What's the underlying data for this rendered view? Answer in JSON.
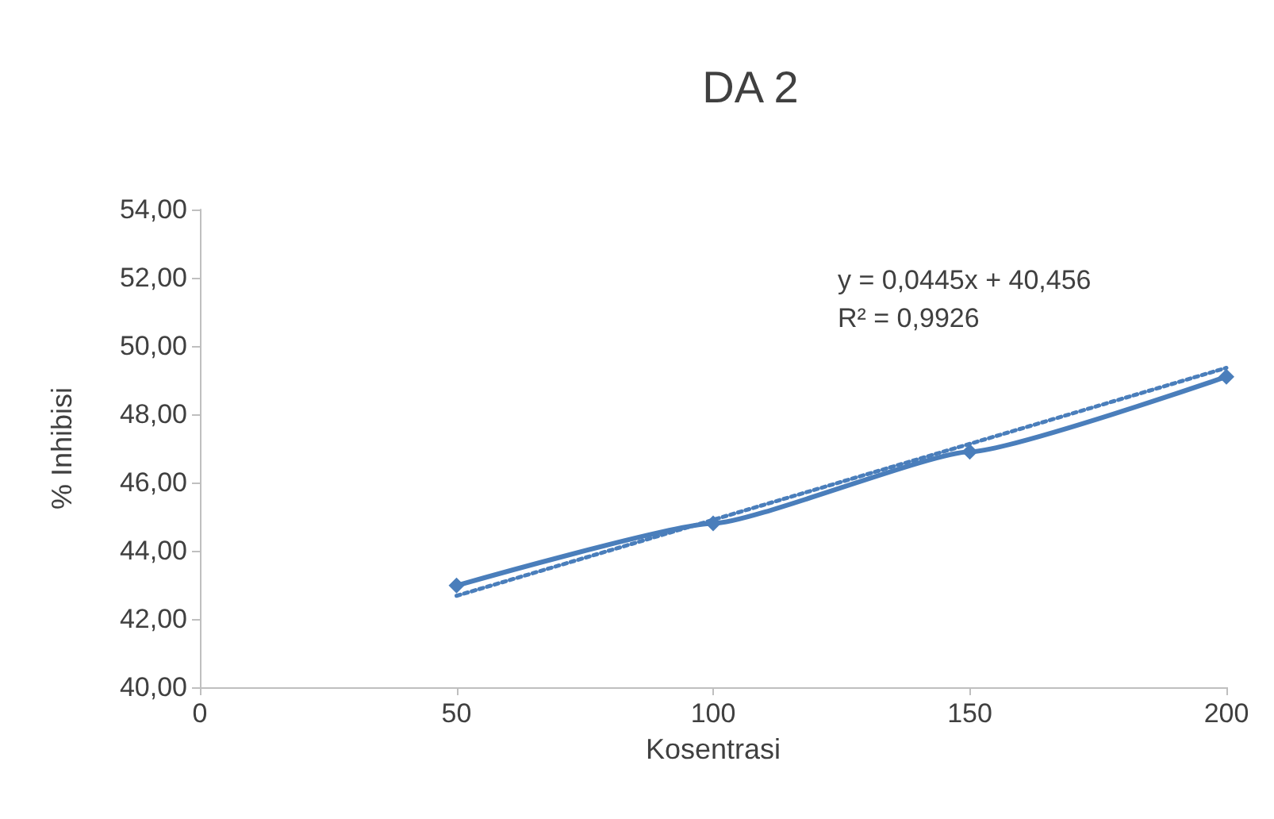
{
  "chart_data": {
    "type": "line",
    "title": "DA 2",
    "xlabel": "Kosentrasi",
    "ylabel": "% Inhibisi",
    "x": [
      50,
      100,
      150,
      200
    ],
    "series": [
      {
        "color": "#4a7ebb",
        "values": [
          42.98,
          44.8,
          46.9,
          49.1
        ],
        "marker": "diamond",
        "line_style": "solid"
      },
      {
        "type": "line",
        "color": "#4a7ebb",
        "x": [
          50,
          200
        ],
        "values": [
          42.68,
          49.36
        ],
        "marker": "none",
        "line_style": "dotted"
      }
    ],
    "xlim": [
      0,
      200
    ],
    "xticks": [
      0,
      50,
      100,
      150,
      200
    ],
    "ylim": [
      40,
      54
    ],
    "yticks": [
      {
        "value": 40,
        "label": "40,00"
      },
      {
        "value": 42,
        "label": "42,00"
      },
      {
        "value": 44,
        "label": "44,00"
      },
      {
        "value": 46,
        "label": "46,00"
      },
      {
        "value": 48,
        "label": "48,00"
      },
      {
        "value": 50,
        "label": "50,00"
      },
      {
        "value": 52,
        "label": "52,00"
      },
      {
        "value": 54,
        "label": "54,00"
      }
    ],
    "annotations": [
      "y = 0,0445x + 40,456",
      "R² = 0,9926"
    ],
    "grid": false
  }
}
